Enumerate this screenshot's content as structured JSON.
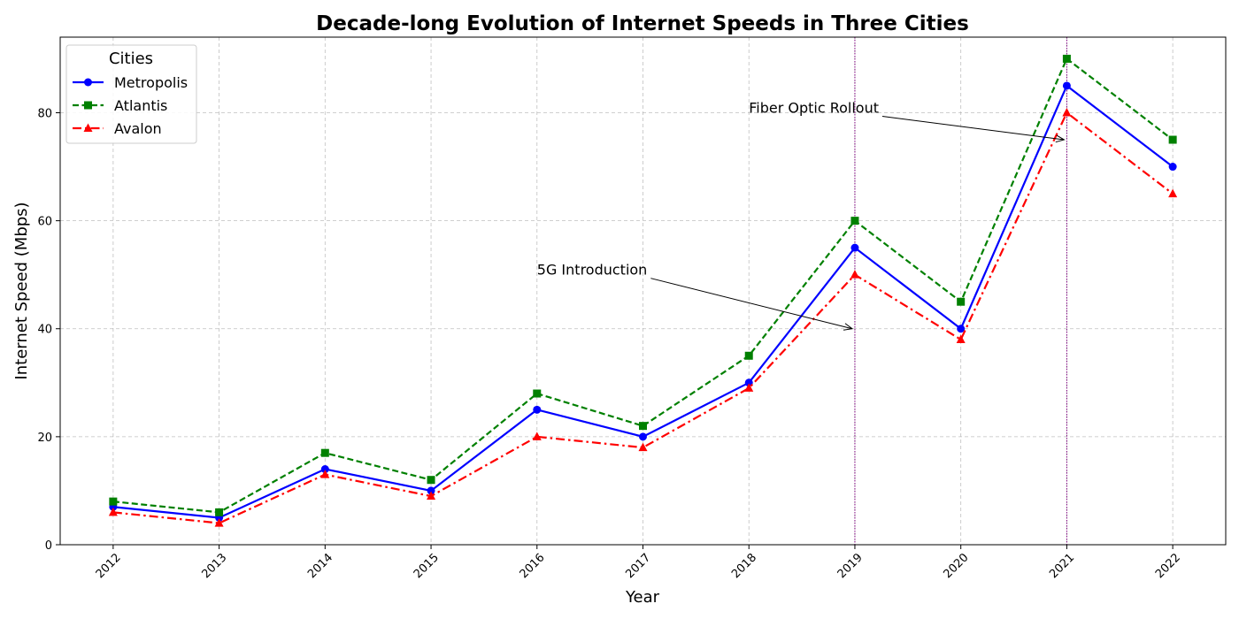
{
  "chart_data": {
    "type": "line",
    "title": "Decade-long Evolution of Internet Speeds in Three Cities",
    "xlabel": "Year",
    "ylabel": "Internet Speed (Mbps)",
    "x": [
      2012,
      2013,
      2014,
      2015,
      2016,
      2017,
      2018,
      2019,
      2020,
      2021,
      2022
    ],
    "xlim": [
      2011.5,
      2022.5
    ],
    "ylim": [
      0,
      94
    ],
    "yticks": [
      0,
      20,
      40,
      60,
      80
    ],
    "grid": true,
    "legend": {
      "title": "Cities",
      "placement": "top-left"
    },
    "series": [
      {
        "name": "Metropolis",
        "values": [
          7,
          5,
          14,
          10,
          25,
          20,
          30,
          55,
          40,
          85,
          70
        ],
        "color": "#0000ff",
        "marker": "circle",
        "linestyle": "solid"
      },
      {
        "name": "Atlantis",
        "values": [
          8,
          6,
          17,
          12,
          28,
          22,
          35,
          60,
          45,
          90,
          75
        ],
        "color": "#008000",
        "marker": "square",
        "linestyle": "dashed"
      },
      {
        "name": "Avalon",
        "values": [
          6,
          4,
          13,
          9,
          20,
          18,
          29,
          50,
          38,
          80,
          65
        ],
        "color": "#ff0000",
        "marker": "triangle",
        "linestyle": "dashdot"
      }
    ],
    "vlines": [
      {
        "x": 2019,
        "color": "#800080"
      },
      {
        "x": 2021,
        "color": "#800080"
      }
    ],
    "annotations": [
      {
        "text": "5G Introduction",
        "x": 2016,
        "y": 50,
        "target_x": 2019,
        "target_y": 40
      },
      {
        "text": "Fiber Optic Rollout",
        "x": 2018,
        "y": 80,
        "target_x": 2021,
        "target_y": 75
      }
    ]
  }
}
